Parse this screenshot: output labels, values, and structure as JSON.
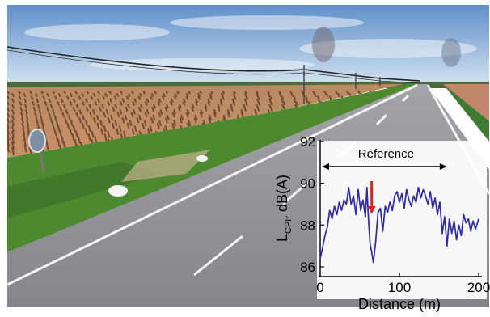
{
  "chart_data": {
    "type": "line",
    "title": "",
    "xlabel": "Distance (m)",
    "ylabel_main": "L",
    "ylabel_sub": "CPIr",
    "ylabel_suffix": " dB(A)",
    "xlim": [
      0,
      200
    ],
    "ylim": [
      86,
      92
    ],
    "xticks": [
      "0",
      "100",
      "200"
    ],
    "yticks": [
      "86",
      "88",
      "90",
      "92"
    ],
    "grid": false,
    "annotations": {
      "reference_label": "Reference",
      "reference_span": [
        0,
        160
      ],
      "arrow_x": 65,
      "arrow_y_from": 90.1,
      "arrow_y_to": 88.6,
      "arrow_color": "#d9261c"
    },
    "series": [
      {
        "color": "#2e2aa8",
        "points": [
          [
            0,
            86.4
          ],
          [
            3,
            86.9
          ],
          [
            6,
            87.5
          ],
          [
            9,
            87.9
          ],
          [
            12,
            88.7
          ],
          [
            15,
            88.3
          ],
          [
            18,
            88.9
          ],
          [
            21,
            88.5
          ],
          [
            24,
            89.1
          ],
          [
            27,
            88.7
          ],
          [
            30,
            89.2
          ],
          [
            33,
            89.0
          ],
          [
            36,
            89.8
          ],
          [
            39,
            89.0
          ],
          [
            42,
            89.4
          ],
          [
            45,
            88.5
          ],
          [
            48,
            89.7
          ],
          [
            51,
            88.7
          ],
          [
            54,
            89.2
          ],
          [
            57,
            88.4
          ],
          [
            59,
            89.8
          ],
          [
            61,
            88.2
          ],
          [
            63,
            87.1
          ],
          [
            65,
            86.7
          ],
          [
            67,
            86.2
          ],
          [
            70,
            87.2
          ],
          [
            73,
            88.6
          ],
          [
            76,
            88.8
          ],
          [
            79,
            87.7
          ],
          [
            82,
            88.9
          ],
          [
            85,
            88.6
          ],
          [
            88,
            89.1
          ],
          [
            91,
            88.7
          ],
          [
            94,
            89.4
          ],
          [
            97,
            89.6
          ],
          [
            100,
            89.1
          ],
          [
            103,
            89.5
          ],
          [
            106,
            88.8
          ],
          [
            109,
            89.7
          ],
          [
            112,
            89.2
          ],
          [
            115,
            88.9
          ],
          [
            118,
            89.4
          ],
          [
            121,
            89.1
          ],
          [
            124,
            89.8
          ],
          [
            127,
            89.3
          ],
          [
            130,
            89.7
          ],
          [
            133,
            89.4
          ],
          [
            136,
            89.0
          ],
          [
            139,
            89.6
          ],
          [
            142,
            88.8
          ],
          [
            145,
            89.3
          ],
          [
            148,
            88.5
          ],
          [
            151,
            89.1
          ],
          [
            154,
            87.6
          ],
          [
            157,
            88.4
          ],
          [
            160,
            87.0
          ],
          [
            163,
            88.3
          ],
          [
            166,
            87.6
          ],
          [
            169,
            88.2
          ],
          [
            172,
            87.3
          ],
          [
            175,
            88.0
          ],
          [
            178,
            87.5
          ],
          [
            181,
            88.5
          ],
          [
            184,
            88.1
          ],
          [
            187,
            88.3
          ],
          [
            190,
            87.7
          ],
          [
            193,
            88.2
          ],
          [
            196,
            87.8
          ],
          [
            200,
            88.3
          ]
        ]
      }
    ]
  },
  "colors": {
    "sky_top": "#5f8fc9",
    "sky_bottom": "#cddff0",
    "field": "#c88e60",
    "grass": "#4e8a2e",
    "road": "#8d8d92",
    "panel_bg": "#ffffff"
  },
  "scene_objects": [
    "road",
    "vineyard-field",
    "grass-verge",
    "power-line",
    "road-sign",
    "utility-poles"
  ]
}
